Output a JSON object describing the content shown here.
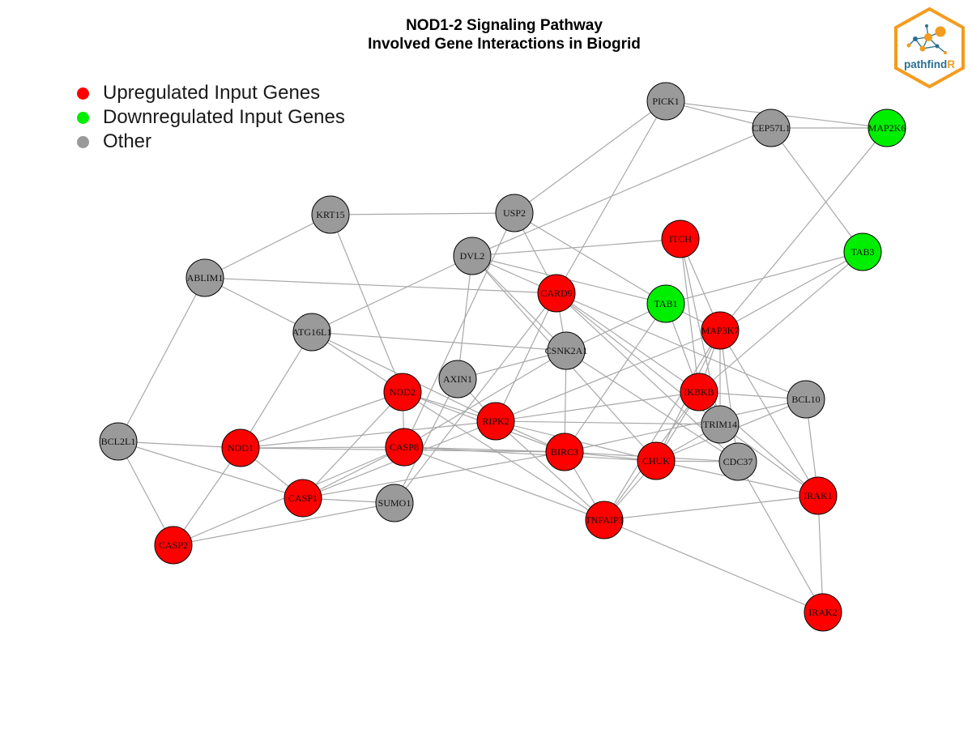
{
  "title": {
    "line1": "NOD1-2 Signaling Pathway",
    "line2": "Involved Gene Interactions in Biogrid"
  },
  "legend": [
    {
      "label": "Upregulated Input Genes",
      "color": "#ff0000"
    },
    {
      "label": "Downregulated Input Genes",
      "color": "#00ee00"
    },
    {
      "label": "Other",
      "color": "#999999"
    }
  ],
  "colors": {
    "up": "#ff0000",
    "down": "#00ee00",
    "other": "#9a9a9a",
    "edge": "#a8a8a8"
  },
  "logo": {
    "text_main": "pathfind",
    "text_accent": "R"
  },
  "nodes": [
    {
      "id": "PICK1",
      "type": "other"
    },
    {
      "id": "CEP57L1",
      "type": "other"
    },
    {
      "id": "MAP2K6",
      "type": "down"
    },
    {
      "id": "KRT15",
      "type": "other"
    },
    {
      "id": "USP2",
      "type": "other"
    },
    {
      "id": "ITCH",
      "type": "up"
    },
    {
      "id": "TAB3",
      "type": "down"
    },
    {
      "id": "DVL2",
      "type": "other"
    },
    {
      "id": "ABLIM1",
      "type": "other"
    },
    {
      "id": "CARD9",
      "type": "up"
    },
    {
      "id": "TAB1",
      "type": "down"
    },
    {
      "id": "MAP3K7",
      "type": "up"
    },
    {
      "id": "ATG16L1",
      "type": "other"
    },
    {
      "id": "CSNK2A1",
      "type": "other"
    },
    {
      "id": "NOD2",
      "type": "up"
    },
    {
      "id": "AXIN1",
      "type": "other"
    },
    {
      "id": "IKBKB",
      "type": "up"
    },
    {
      "id": "BCL10",
      "type": "other"
    },
    {
      "id": "RIPK2",
      "type": "up"
    },
    {
      "id": "TRIM14",
      "type": "other"
    },
    {
      "id": "BCL2L1",
      "type": "other"
    },
    {
      "id": "NOD1",
      "type": "up"
    },
    {
      "id": "CASP8",
      "type": "up"
    },
    {
      "id": "BIRC3",
      "type": "up"
    },
    {
      "id": "CHUK",
      "type": "up"
    },
    {
      "id": "CDC37",
      "type": "other"
    },
    {
      "id": "CASP1",
      "type": "up"
    },
    {
      "id": "SUMO1",
      "type": "other"
    },
    {
      "id": "IRAK1",
      "type": "up"
    },
    {
      "id": "TNFAIP3",
      "type": "up"
    },
    {
      "id": "CASP2",
      "type": "up"
    },
    {
      "id": "IRAK2",
      "type": "up"
    }
  ],
  "edges": [
    [
      "PICK1",
      "CEP57L1"
    ],
    [
      "PICK1",
      "MAP2K6"
    ],
    [
      "PICK1",
      "USP2"
    ],
    [
      "PICK1",
      "CARD9"
    ],
    [
      "CEP57L1",
      "MAP2K6"
    ],
    [
      "CEP57L1",
      "DVL2"
    ],
    [
      "CEP57L1",
      "TAB3"
    ],
    [
      "MAP2K6",
      "MAP3K7"
    ],
    [
      "KRT15",
      "USP2"
    ],
    [
      "KRT15",
      "ABLIM1"
    ],
    [
      "KRT15",
      "NOD2"
    ],
    [
      "USP2",
      "CARD9"
    ],
    [
      "USP2",
      "TAB1"
    ],
    [
      "USP2",
      "CASP8"
    ],
    [
      "ITCH",
      "DVL2"
    ],
    [
      "ITCH",
      "MAP3K7"
    ],
    [
      "ITCH",
      "IKBKB"
    ],
    [
      "ITCH",
      "TRIM14"
    ],
    [
      "TAB3",
      "TAB1"
    ],
    [
      "TAB3",
      "MAP3K7"
    ],
    [
      "TAB3",
      "IKBKB"
    ],
    [
      "DVL2",
      "CARD9"
    ],
    [
      "DVL2",
      "ATG16L1"
    ],
    [
      "DVL2",
      "AXIN1"
    ],
    [
      "DVL2",
      "CSNK2A1"
    ],
    [
      "DVL2",
      "CHUK"
    ],
    [
      "DVL2",
      "TAB1"
    ],
    [
      "ABLIM1",
      "CARD9"
    ],
    [
      "ABLIM1",
      "ATG16L1"
    ],
    [
      "ABLIM1",
      "BCL2L1"
    ],
    [
      "CARD9",
      "CSNK2A1"
    ],
    [
      "CARD9",
      "BCL10"
    ],
    [
      "CARD9",
      "TRIM14"
    ],
    [
      "CARD9",
      "CDC37"
    ],
    [
      "CARD9",
      "RIPK2"
    ],
    [
      "CARD9",
      "SUMO1"
    ],
    [
      "CARD9",
      "IKBKB"
    ],
    [
      "TAB1",
      "MAP3K7"
    ],
    [
      "TAB1",
      "CSNK2A1"
    ],
    [
      "TAB1",
      "IKBKB"
    ],
    [
      "TAB1",
      "BIRC3"
    ],
    [
      "MAP3K7",
      "IKBKB"
    ],
    [
      "MAP3K7",
      "CHUK"
    ],
    [
      "MAP3K7",
      "TRIM14"
    ],
    [
      "MAP3K7",
      "IRAK1"
    ],
    [
      "MAP3K7",
      "RIPK2"
    ],
    [
      "MAP3K7",
      "TNFAIP3"
    ],
    [
      "MAP3K7",
      "CDC37"
    ],
    [
      "ATG16L1",
      "CSNK2A1"
    ],
    [
      "ATG16L1",
      "NOD2"
    ],
    [
      "ATG16L1",
      "NOD1"
    ],
    [
      "ATG16L1",
      "RIPK2"
    ],
    [
      "CSNK2A1",
      "BIRC3"
    ],
    [
      "CSNK2A1",
      "CDC37"
    ],
    [
      "CSNK2A1",
      "AXIN1"
    ],
    [
      "CSNK2A1",
      "CASP8"
    ],
    [
      "NOD2",
      "RIPK2"
    ],
    [
      "NOD2",
      "CASP8"
    ],
    [
      "NOD2",
      "BIRC3"
    ],
    [
      "NOD2",
      "CASP1"
    ],
    [
      "NOD2",
      "NOD1"
    ],
    [
      "NOD2",
      "TNFAIP3"
    ],
    [
      "AXIN1",
      "RIPK2"
    ],
    [
      "AXIN1",
      "SUMO1"
    ],
    [
      "IKBKB",
      "CHUK"
    ],
    [
      "IKBKB",
      "BCL10"
    ],
    [
      "IKBKB",
      "TNFAIP3"
    ],
    [
      "IKBKB",
      "IRAK1"
    ],
    [
      "IKBKB",
      "RIPK2"
    ],
    [
      "BCL10",
      "BIRC3"
    ],
    [
      "BCL10",
      "CHUK"
    ],
    [
      "BCL10",
      "IRAK1"
    ],
    [
      "RIPK2",
      "NOD1"
    ],
    [
      "RIPK2",
      "CASP1"
    ],
    [
      "RIPK2",
      "BIRC3"
    ],
    [
      "RIPK2",
      "TRIM14"
    ],
    [
      "RIPK2",
      "CHUK"
    ],
    [
      "RIPK2",
      "TNFAIP3"
    ],
    [
      "TRIM14",
      "CHUK"
    ],
    [
      "TRIM14",
      "IRAK1"
    ],
    [
      "BCL2L1",
      "NOD1"
    ],
    [
      "BCL2L1",
      "CASP1"
    ],
    [
      "BCL2L1",
      "CASP2"
    ],
    [
      "NOD1",
      "CASP8"
    ],
    [
      "NOD1",
      "CASP1"
    ],
    [
      "NOD1",
      "CASP2"
    ],
    [
      "NOD1",
      "BIRC3"
    ],
    [
      "CASP8",
      "CASP1"
    ],
    [
      "CASP8",
      "CASP2"
    ],
    [
      "CASP8",
      "BIRC3"
    ],
    [
      "CASP8",
      "CHUK"
    ],
    [
      "CASP8",
      "TNFAIP3"
    ],
    [
      "BIRC3",
      "CHUK"
    ],
    [
      "BIRC3",
      "TNFAIP3"
    ],
    [
      "BIRC3",
      "CDC37"
    ],
    [
      "BIRC3",
      "CASP1"
    ],
    [
      "CHUK",
      "CDC37"
    ],
    [
      "CHUK",
      "TNFAIP3"
    ],
    [
      "CHUK",
      "IRAK1"
    ],
    [
      "CDC37",
      "IRAK2"
    ],
    [
      "CASP1",
      "SUMO1"
    ],
    [
      "SUMO1",
      "CASP2"
    ],
    [
      "IRAK1",
      "IRAK2"
    ],
    [
      "IRAK1",
      "TNFAIP3"
    ],
    [
      "TNFAIP3",
      "IRAK2"
    ]
  ]
}
